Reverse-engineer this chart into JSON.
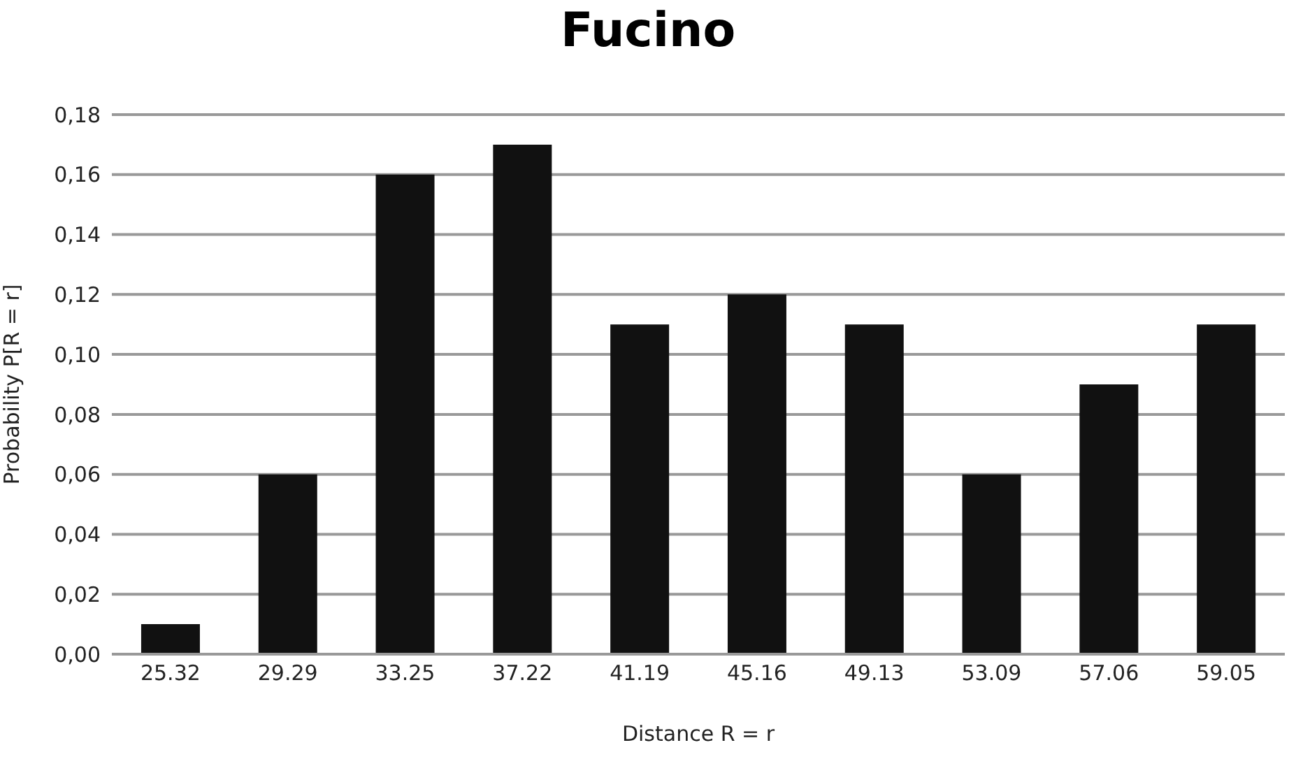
{
  "chart_data": {
    "type": "bar",
    "title": "Fucino",
    "xlabel": "Distance R = r",
    "ylabel": "Probability P[R = r]",
    "categories": [
      "25.32",
      "29.29",
      "33.25",
      "37.22",
      "41.19",
      "45.16",
      "49.13",
      "53.09",
      "57.06",
      "59.05"
    ],
    "values": [
      0.01,
      0.06,
      0.16,
      0.17,
      0.11,
      0.12,
      0.11,
      0.06,
      0.09,
      0.11
    ],
    "color": "#111111",
    "ylim": [
      0,
      0.18
    ],
    "yticks": [
      {
        "value": 0,
        "label": "0,00"
      },
      {
        "value": 0.02,
        "label": "0,02"
      },
      {
        "value": 0.04,
        "label": "0,04"
      },
      {
        "value": 0.06,
        "label": "0,06"
      },
      {
        "value": 0.08,
        "label": "0,08"
      },
      {
        "value": 0.1,
        "label": "0,10"
      },
      {
        "value": 0.12,
        "label": "0,12"
      },
      {
        "value": 0.14,
        "label": "0,14"
      },
      {
        "value": 0.16,
        "label": "0,16"
      },
      {
        "value": 0.18,
        "label": "0,18"
      }
    ],
    "grid": "y"
  }
}
